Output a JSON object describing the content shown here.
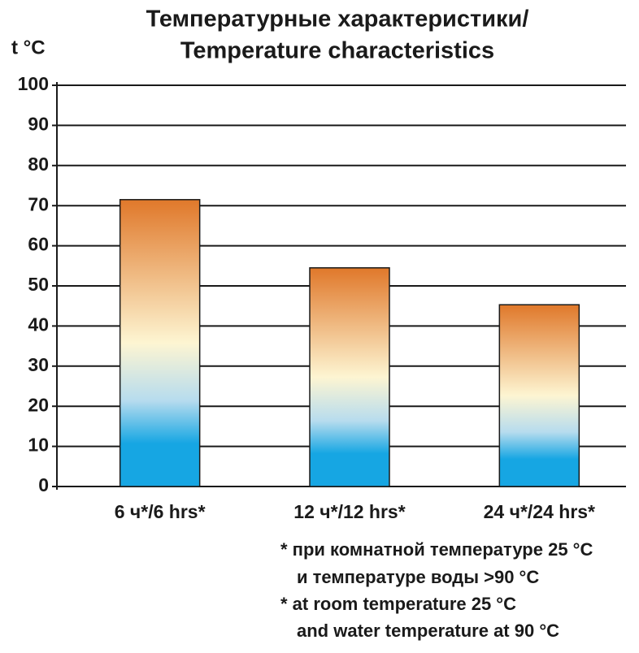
{
  "chart_data": {
    "type": "bar",
    "title": [
      "Температурные характеристики/",
      "Temperature characteristics"
    ],
    "y_label": "t °C",
    "categories": [
      "6 ч*/6 hrs*",
      "12 ч*/12 hrs*",
      "24 ч*/24 hrs*"
    ],
    "values": [
      71.5,
      54.5,
      45.3
    ],
    "gradient": [
      "#e0782a",
      "#fdf5d2",
      "#16a6e3"
    ],
    "ylim": [
      0,
      100
    ],
    "yticks": [
      0,
      10,
      20,
      30,
      40,
      50,
      60,
      70,
      80,
      90,
      100
    ],
    "grid": true,
    "notes": [
      "* при комнатной температуре 25 °C",
      "и температуре воды >90 °C",
      "* at room temperature 25 °C",
      "and water temperature at 90 °C"
    ]
  }
}
